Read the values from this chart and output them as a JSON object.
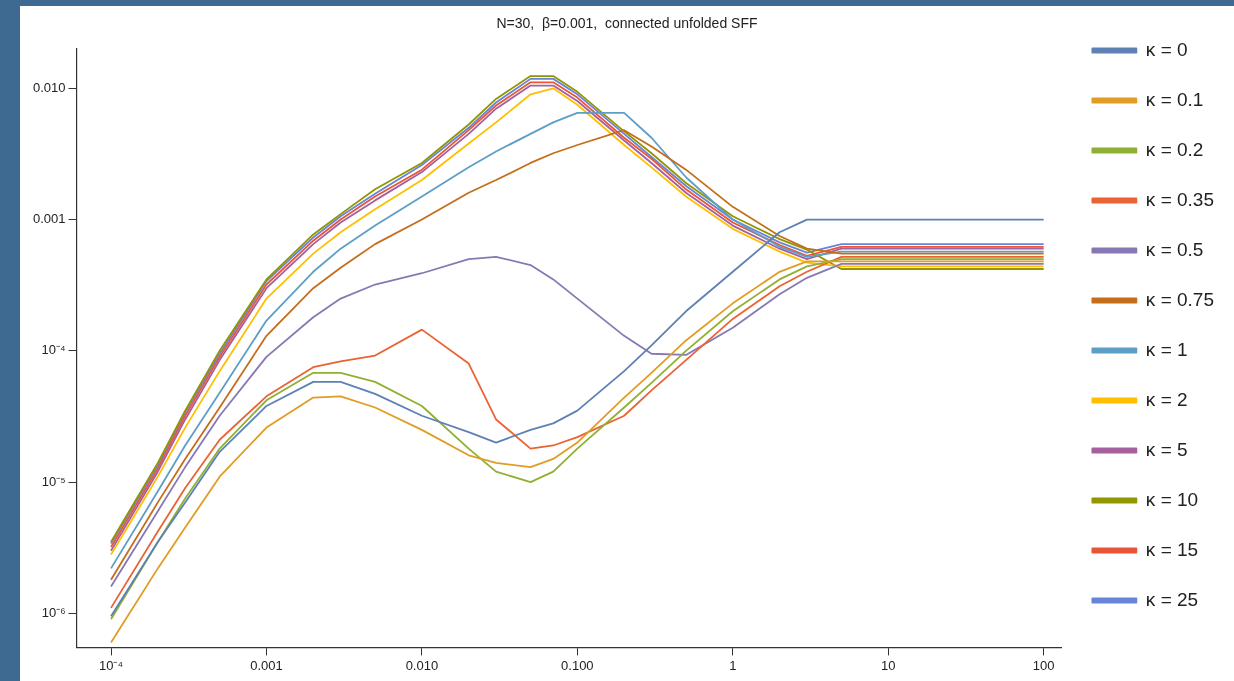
{
  "chart_data": {
    "type": "line",
    "title": "N=30,  β=0.001,  connected unfolded SFF",
    "log": "xy",
    "grid": false,
    "legend": "right",
    "marker": "none",
    "line_style": "solid",
    "x": [
      0.0001,
      0.0002,
      0.0003,
      0.0005,
      0.001,
      0.002,
      0.003,
      0.005,
      0.01,
      0.02,
      0.03,
      0.05,
      0.07,
      0.1,
      0.2,
      0.3,
      0.5,
      1,
      2,
      3,
      5,
      10,
      30,
      100
    ],
    "xlim": [
      6e-05,
      130
    ],
    "ylim": [
      5.5e-07,
      0.02
    ],
    "xticks": [
      {
        "value": 0.0001,
        "label": "10⁻⁴"
      },
      {
        "value": 0.001,
        "label": "0.001"
      },
      {
        "value": 0.01,
        "label": "0.010"
      },
      {
        "value": 0.1,
        "label": "0.100"
      },
      1,
      10,
      100
    ],
    "yticks": [
      {
        "value": 1e-06,
        "label": "10⁻⁶"
      },
      {
        "value": 1e-05,
        "label": "10⁻⁵"
      },
      {
        "value": 0.0001,
        "label": "10⁻⁴"
      },
      0.001,
      {
        "value": 0.01,
        "label": "0.010"
      }
    ],
    "series": [
      {
        "name": "κ = 0",
        "color": "#5e81b5",
        "values": [
          9.5e-07,
          3.5e-06,
          7e-06,
          1.7e-05,
          3.8e-05,
          5.8e-05,
          5.8e-05,
          4.7e-05,
          3.2e-05,
          2.4e-05,
          2e-05,
          2.5e-05,
          2.8e-05,
          3.5e-05,
          7e-05,
          0.00011,
          0.0002,
          0.0004,
          0.0008,
          0.001,
          0.001,
          0.001,
          0.001,
          0.001
        ]
      },
      {
        "name": "κ = 0.1",
        "color": "#e19c24",
        "values": [
          6e-07,
          2.2e-06,
          4.5e-06,
          1.1e-05,
          2.6e-05,
          4.4e-05,
          4.5e-05,
          3.7e-05,
          2.5e-05,
          1.6e-05,
          1.4e-05,
          1.3e-05,
          1.5e-05,
          2e-05,
          4.4e-05,
          6.8e-05,
          0.00012,
          0.00023,
          0.0004,
          0.00048,
          0.00048,
          0.00048,
          0.00048,
          0.00048
        ]
      },
      {
        "name": "κ = 0.2",
        "color": "#8fb032",
        "values": [
          9e-07,
          3.5e-06,
          7.5e-06,
          1.8e-05,
          4.2e-05,
          6.8e-05,
          6.8e-05,
          5.8e-05,
          3.8e-05,
          1.8e-05,
          1.2e-05,
          1e-05,
          1.2e-05,
          1.8e-05,
          3.7e-05,
          5.7e-05,
          0.0001,
          0.0002,
          0.00035,
          0.00044,
          0.0005,
          0.0005,
          0.0005,
          0.0005
        ]
      },
      {
        "name": "κ = 0.35",
        "color": "#eb6235",
        "values": [
          1.1e-06,
          4.2e-06,
          9e-06,
          2.1e-05,
          4.5e-05,
          7.5e-05,
          8.3e-05,
          9.2e-05,
          0.000145,
          8e-05,
          3e-05,
          1.8e-05,
          1.9e-05,
          2.2e-05,
          3.2e-05,
          5e-05,
          8.5e-05,
          0.000175,
          0.00031,
          0.0004,
          0.00052,
          0.00052,
          0.00052,
          0.00052
        ]
      },
      {
        "name": "κ = 0.5",
        "color": "#8778b3",
        "values": [
          1.6e-06,
          6e-06,
          1.3e-05,
          3.2e-05,
          9e-05,
          0.00018,
          0.00025,
          0.00032,
          0.00039,
          0.0005,
          0.00052,
          0.00045,
          0.00035,
          0.00025,
          0.00013,
          9.5e-05,
          9.3e-05,
          0.00015,
          0.00027,
          0.00036,
          0.00046,
          0.00046,
          0.00046,
          0.00046
        ]
      },
      {
        "name": "κ = 0.75",
        "color": "#c56e1a",
        "values": [
          1.8e-06,
          7e-06,
          1.5e-05,
          3.7e-05,
          0.00013,
          0.0003,
          0.00043,
          0.00065,
          0.001,
          0.0016,
          0.002,
          0.0027,
          0.0032,
          0.0037,
          0.0048,
          0.0036,
          0.0024,
          0.00125,
          0.00075,
          0.0006,
          0.00055,
          0.00055,
          0.00055,
          0.00055
        ]
      },
      {
        "name": "κ = 1",
        "color": "#5d9ec7",
        "values": [
          2.2e-06,
          8.5e-06,
          1.9e-05,
          4.8e-05,
          0.00017,
          0.0004,
          0.0006,
          0.0009,
          0.0015,
          0.0025,
          0.0033,
          0.0045,
          0.0055,
          0.0065,
          0.0065,
          0.0042,
          0.0021,
          0.001,
          0.00062,
          0.00052,
          0.00057,
          0.00057,
          0.00057,
          0.00057
        ]
      },
      {
        "name": "κ = 2",
        "color": "#ffbf00",
        "values": [
          2.8e-06,
          1.1e-05,
          2.6e-05,
          7e-05,
          0.00025,
          0.00055,
          0.0008,
          0.0012,
          0.002,
          0.0038,
          0.0055,
          0.009,
          0.01,
          0.0075,
          0.0037,
          0.0025,
          0.0015,
          0.00085,
          0.00057,
          0.00047,
          0.00044,
          0.00044,
          0.00044,
          0.00044
        ]
      },
      {
        "name": "κ = 5",
        "color": "#a5609d",
        "values": [
          3e-06,
          1.2e-05,
          3e-05,
          8.5e-05,
          0.0003,
          0.00065,
          0.00095,
          0.0014,
          0.0023,
          0.0045,
          0.007,
          0.0105,
          0.0105,
          0.008,
          0.004,
          0.0027,
          0.0016,
          0.0009,
          0.0006,
          0.0005,
          0.0006,
          0.0006,
          0.0006,
          0.0006
        ]
      },
      {
        "name": "κ = 10",
        "color": "#929600",
        "values": [
          3.5e-06,
          1.4e-05,
          3.5e-05,
          0.0001,
          0.00035,
          0.00077,
          0.0011,
          0.0017,
          0.0027,
          0.0053,
          0.0083,
          0.0124,
          0.0124,
          0.0094,
          0.0047,
          0.0032,
          0.0019,
          0.00106,
          0.00071,
          0.00059,
          0.00042,
          0.00042,
          0.00042,
          0.00042
        ]
      },
      {
        "name": "κ = 15",
        "color": "#e95536",
        "values": [
          3.2e-06,
          1.27e-05,
          3.2e-05,
          9e-05,
          0.00032,
          0.00069,
          0.001,
          0.0015,
          0.0024,
          0.0048,
          0.0074,
          0.0111,
          0.0111,
          0.0085,
          0.0042,
          0.0029,
          0.0017,
          0.00095,
          0.00064,
          0.00053,
          0.00062,
          0.00062,
          0.00062,
          0.00062
        ]
      },
      {
        "name": "κ = 25",
        "color": "#6685d9",
        "values": [
          3.4e-06,
          1.34e-05,
          3.4e-05,
          9.5e-05,
          0.00034,
          0.00073,
          0.00106,
          0.00157,
          0.0026,
          0.005,
          0.0078,
          0.0118,
          0.0118,
          0.009,
          0.0045,
          0.003,
          0.0018,
          0.001,
          0.00067,
          0.00056,
          0.00065,
          0.00065,
          0.00065,
          0.00065
        ]
      }
    ]
  }
}
